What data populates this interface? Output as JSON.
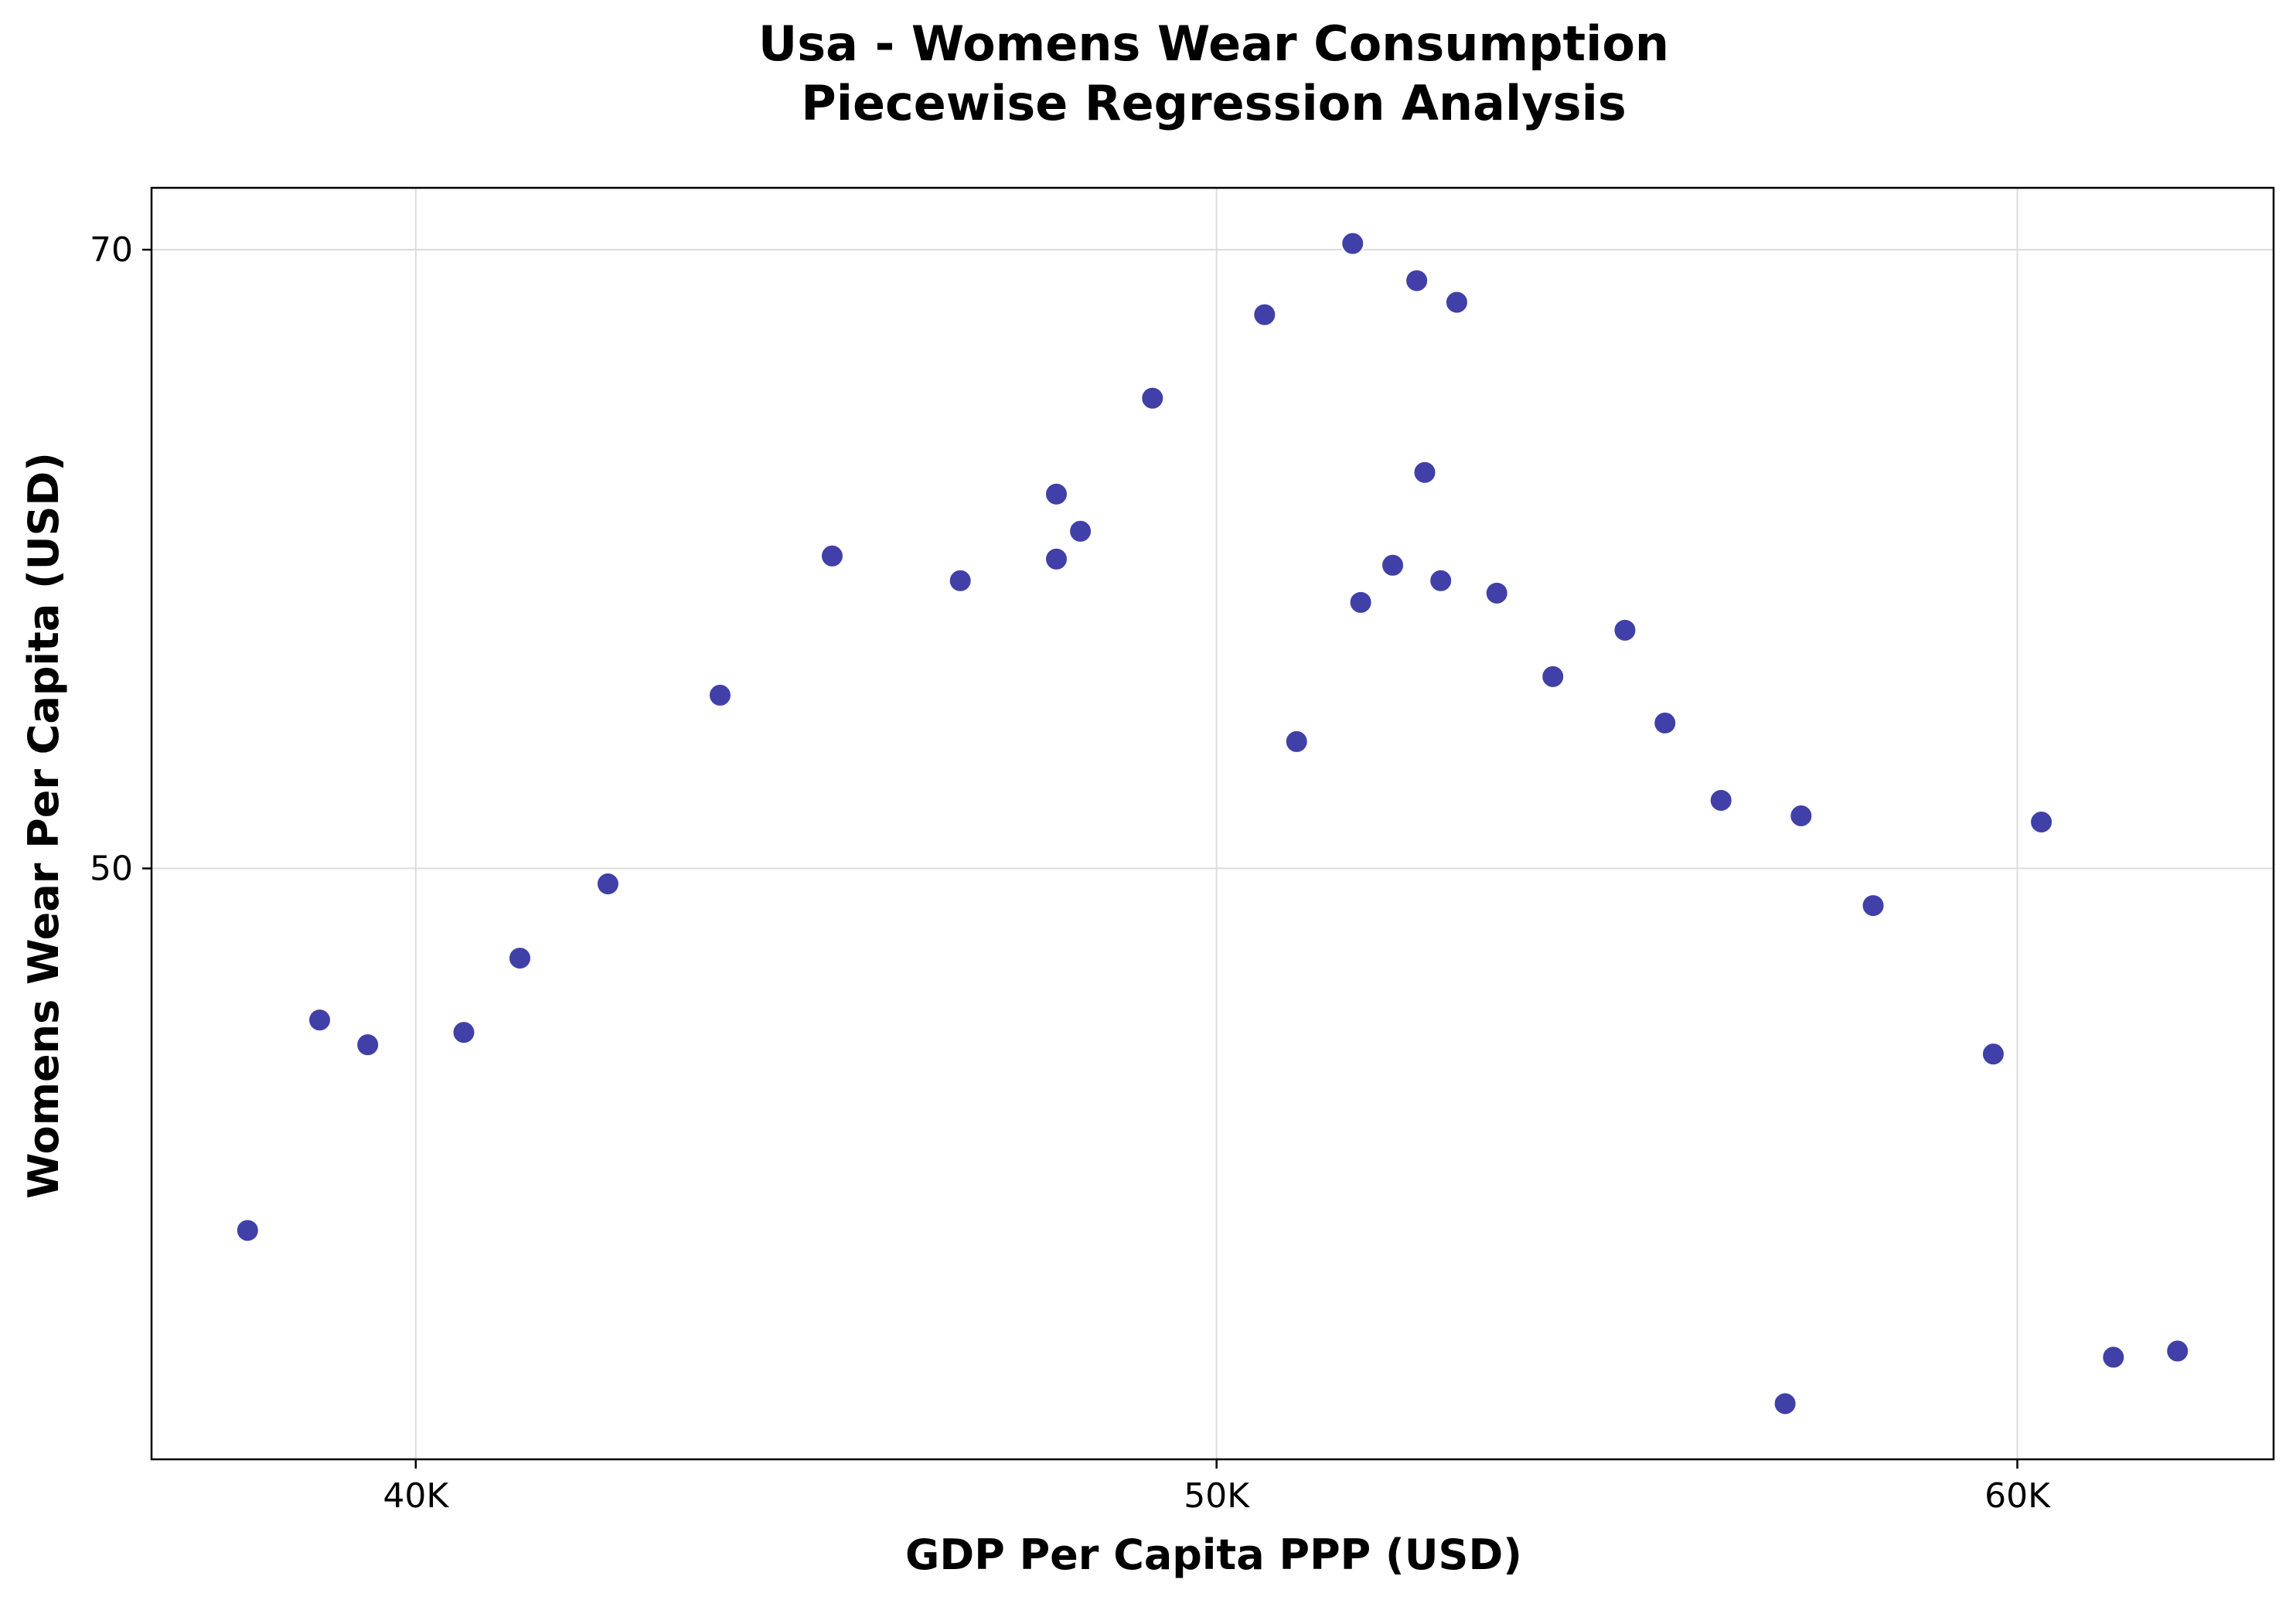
{
  "chart_data": {
    "type": "scatter",
    "title_lines": [
      "Usa - Womens Wear Consumption",
      "Piecewise Regression Analysis"
    ],
    "xlabel": "GDP Per Capita PPP (USD)",
    "ylabel": "Womens Wear Per Capita (USD)",
    "xlim": [
      36700,
      63200
    ],
    "ylim": [
      30.9,
      72.0
    ],
    "x_ticks": [
      {
        "value": 40000,
        "label": "40K"
      },
      {
        "value": 50000,
        "label": "50K"
      },
      {
        "value": 60000,
        "label": "60K"
      }
    ],
    "y_ticks": [
      {
        "value": 50,
        "label": "50"
      },
      {
        "value": 70,
        "label": "70"
      }
    ],
    "grid": true,
    "marker_color": "#4040a8",
    "points": [
      {
        "x": 37900,
        "y": 38.3
      },
      {
        "x": 38800,
        "y": 45.1
      },
      {
        "x": 39400,
        "y": 44.3
      },
      {
        "x": 40600,
        "y": 44.7
      },
      {
        "x": 41300,
        "y": 47.1
      },
      {
        "x": 42400,
        "y": 49.5
      },
      {
        "x": 43800,
        "y": 55.6
      },
      {
        "x": 45200,
        "y": 60.1
      },
      {
        "x": 46800,
        "y": 59.3
      },
      {
        "x": 48000,
        "y": 60.0
      },
      {
        "x": 48000,
        "y": 62.1
      },
      {
        "x": 48300,
        "y": 60.9
      },
      {
        "x": 49200,
        "y": 65.2
      },
      {
        "x": 50600,
        "y": 67.9
      },
      {
        "x": 51000,
        "y": 54.1
      },
      {
        "x": 51700,
        "y": 70.2
      },
      {
        "x": 51800,
        "y": 58.6
      },
      {
        "x": 52200,
        "y": 59.8
      },
      {
        "x": 52500,
        "y": 69.0
      },
      {
        "x": 52600,
        "y": 62.8
      },
      {
        "x": 52800,
        "y": 59.3
      },
      {
        "x": 53000,
        "y": 68.3
      },
      {
        "x": 53500,
        "y": 58.9
      },
      {
        "x": 54200,
        "y": 56.2
      },
      {
        "x": 55100,
        "y": 57.7
      },
      {
        "x": 55600,
        "y": 54.7
      },
      {
        "x": 56300,
        "y": 52.2
      },
      {
        "x": 57100,
        "y": 32.7
      },
      {
        "x": 57300,
        "y": 51.7
      },
      {
        "x": 58200,
        "y": 48.8
      },
      {
        "x": 59700,
        "y": 44.0
      },
      {
        "x": 60300,
        "y": 51.5
      },
      {
        "x": 61200,
        "y": 34.2
      },
      {
        "x": 62000,
        "y": 34.4
      }
    ]
  }
}
